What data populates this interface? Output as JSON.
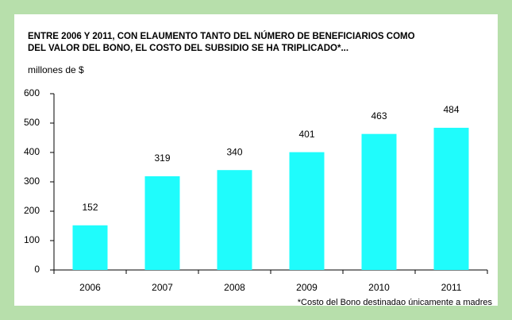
{
  "chart_data": {
    "type": "bar",
    "title": [
      "ENTRE 2006 Y 2011, CON ELAUMENTO TANTO DEL NÚMERO DE BENEFICIARIOS COMO",
      "DEL VALOR DEL BONO, EL COSTO DEL SUBSIDIO SE HA TRIPLICADO*..."
    ],
    "y_axis_label": "millones de $",
    "categories": [
      "2006",
      "2007",
      "2008",
      "2009",
      "2010",
      "2011"
    ],
    "values": [
      152,
      319,
      340,
      401,
      463,
      484
    ],
    "color": "#1ffcfc",
    "ylim": [
      0,
      600
    ],
    "yticks": [
      0,
      100,
      200,
      300,
      400,
      500,
      600
    ],
    "footnote": "*Costo del Bono destinadao únicamente a madres"
  }
}
